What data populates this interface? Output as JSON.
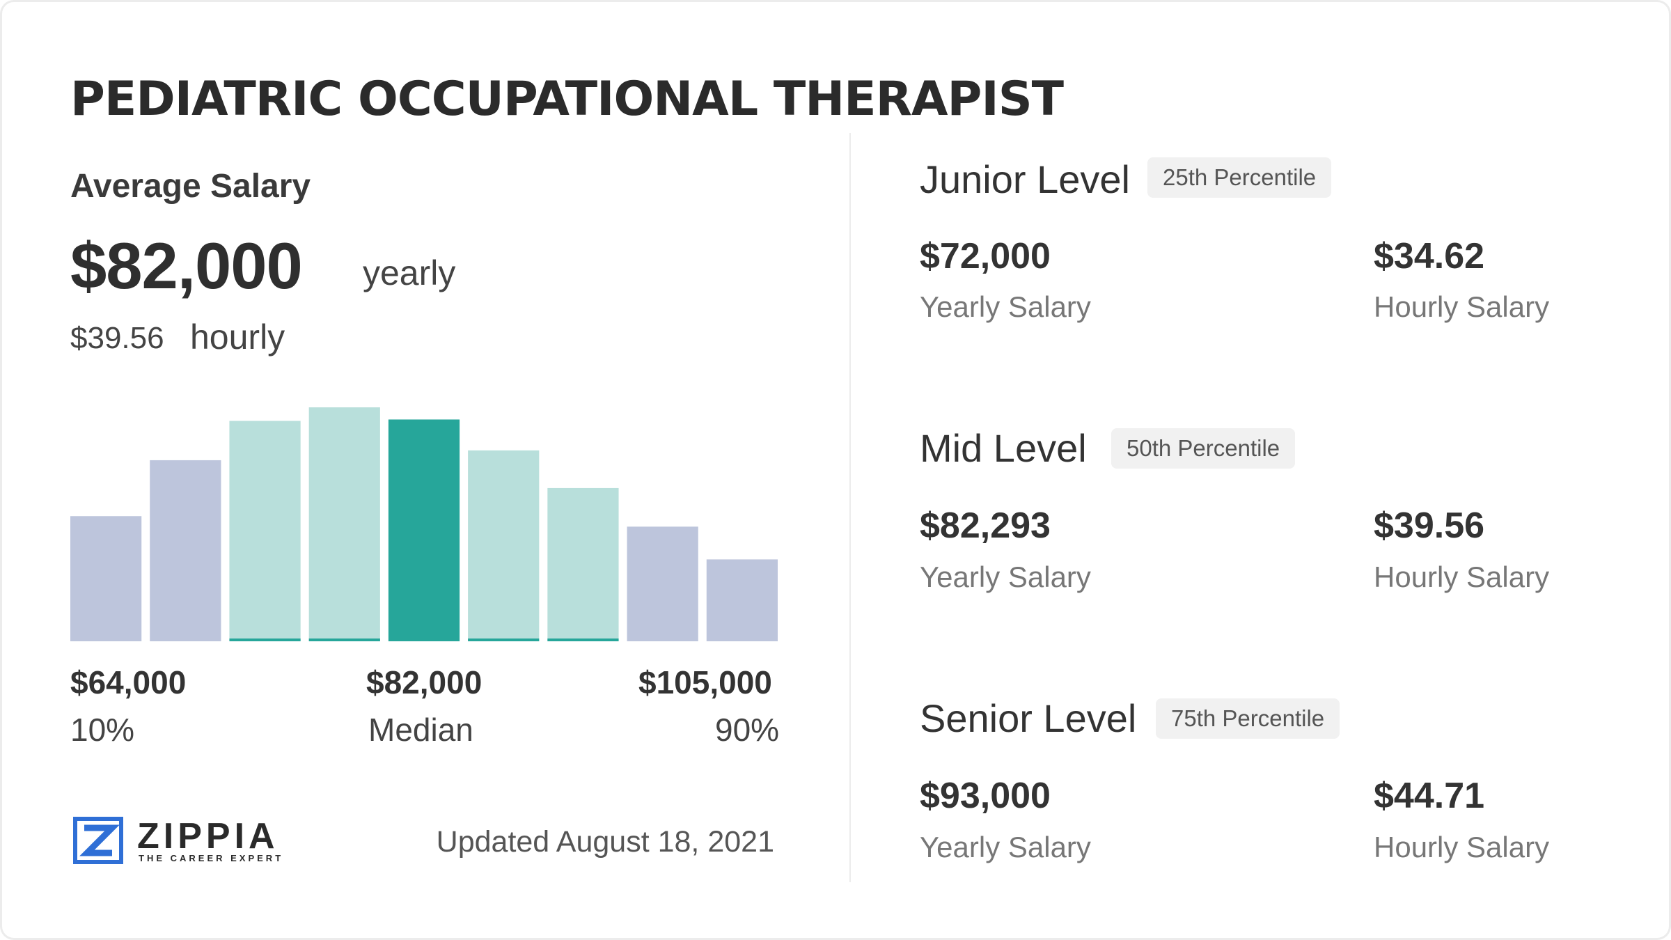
{
  "title": "PEDIATRIC OCCUPATIONAL THERAPIST",
  "average": {
    "label": "Average Salary",
    "yearly": "$82,000",
    "yearly_unit": "yearly",
    "hourly": "$39.56",
    "hourly_unit": "hourly"
  },
  "colors": {
    "outer_bar": "#bdc5dc",
    "inner_bar": "#b8dfdb",
    "median_bar": "#26a69a",
    "inner_bar_base": "#26a69a"
  },
  "chart_data": {
    "type": "bar",
    "bars": [
      {
        "height_fraction": 0.535,
        "group": "outer"
      },
      {
        "height_fraction": 0.774,
        "group": "outer"
      },
      {
        "height_fraction": 0.942,
        "group": "inner"
      },
      {
        "height_fraction": 1.0,
        "group": "inner"
      },
      {
        "height_fraction": 0.948,
        "group": "median"
      },
      {
        "height_fraction": 0.816,
        "group": "inner"
      },
      {
        "height_fraction": 0.655,
        "group": "inner"
      },
      {
        "height_fraction": 0.49,
        "group": "outer"
      },
      {
        "height_fraction": 0.35,
        "group": "outer"
      }
    ],
    "x_labels": [
      {
        "value": "$64,000",
        "percentile": "10%"
      },
      {
        "value": "$82,000",
        "percentile": "Median"
      },
      {
        "value": "$105,000",
        "percentile": "90%"
      }
    ]
  },
  "branding": {
    "logo_text": "ZIPPIA",
    "tagline": "THE CAREER EXPERT",
    "updated": "Updated August 18, 2021"
  },
  "levels": [
    {
      "name": "Junior Level",
      "badge": "25th Percentile",
      "yearly": "$72,000",
      "yearly_label": "Yearly Salary",
      "hourly": "$34.62",
      "hourly_label": "Hourly Salary"
    },
    {
      "name": "Mid Level",
      "badge": "50th Percentile",
      "yearly": "$82,293",
      "yearly_label": "Yearly Salary",
      "hourly": "$39.56",
      "hourly_label": "Hourly Salary"
    },
    {
      "name": "Senior Level",
      "badge": "75th Percentile",
      "yearly": "$93,000",
      "yearly_label": "Yearly Salary",
      "hourly": "$44.71",
      "hourly_label": "Hourly Salary"
    }
  ]
}
